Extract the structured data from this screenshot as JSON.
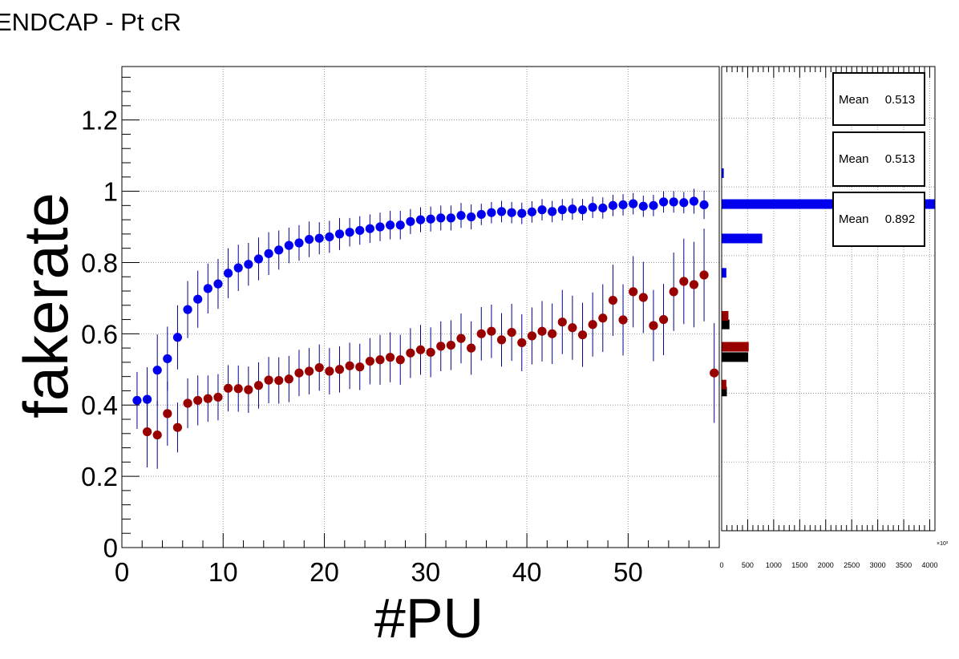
{
  "title": "ENDCAP - Pt cR",
  "colors": {
    "blue": "#0000ee",
    "red": "#990000",
    "black": "#000000",
    "errbar": "#00008b",
    "grid": "#9a9a9a"
  },
  "chart_data": [
    {
      "type": "scatter",
      "title": "ENDCAP - Pt cR",
      "xlabel": "#PU",
      "ylabel": "fakerate",
      "xlim": [
        0,
        59
      ],
      "ylim": [
        0,
        1.35
      ],
      "grid": true,
      "x_ticks": [
        "0",
        "10",
        "20",
        "30",
        "40",
        "50"
      ],
      "y_ticks": [
        "0",
        "0.2",
        "0.4",
        "0.6",
        "0.8",
        "1",
        "1.2"
      ],
      "series": [
        {
          "color": "blue",
          "points": [
            [
              1.5,
              0.413,
              0.08
            ],
            [
              2.5,
              0.416,
              0.09
            ],
            [
              3.5,
              0.498,
              0.1
            ],
            [
              4.5,
              0.53,
              0.09
            ],
            [
              5.5,
              0.59,
              0.09
            ],
            [
              6.5,
              0.668,
              0.08
            ],
            [
              7.5,
              0.697,
              0.08
            ],
            [
              8.5,
              0.727,
              0.07
            ],
            [
              9.5,
              0.74,
              0.07
            ],
            [
              10.5,
              0.77,
              0.07
            ],
            [
              11.5,
              0.785,
              0.065
            ],
            [
              12.5,
              0.795,
              0.06
            ],
            [
              13.5,
              0.81,
              0.06
            ],
            [
              14.5,
              0.825,
              0.06
            ],
            [
              15.5,
              0.835,
              0.055
            ],
            [
              16.5,
              0.848,
              0.05
            ],
            [
              17.5,
              0.855,
              0.05
            ],
            [
              18.5,
              0.865,
              0.05
            ],
            [
              19.5,
              0.868,
              0.045
            ],
            [
              20.5,
              0.872,
              0.045
            ],
            [
              21.5,
              0.88,
              0.045
            ],
            [
              22.5,
              0.885,
              0.04
            ],
            [
              23.5,
              0.89,
              0.04
            ],
            [
              24.5,
              0.895,
              0.04
            ],
            [
              25.5,
              0.9,
              0.04
            ],
            [
              26.5,
              0.905,
              0.04
            ],
            [
              27.5,
              0.905,
              0.04
            ],
            [
              28.5,
              0.915,
              0.035
            ],
            [
              29.5,
              0.92,
              0.035
            ],
            [
              30.5,
              0.922,
              0.035
            ],
            [
              31.5,
              0.925,
              0.035
            ],
            [
              32.5,
              0.925,
              0.035
            ],
            [
              33.5,
              0.932,
              0.035
            ],
            [
              34.5,
              0.928,
              0.035
            ],
            [
              35.5,
              0.935,
              0.03
            ],
            [
              36.5,
              0.94,
              0.03
            ],
            [
              37.5,
              0.943,
              0.03
            ],
            [
              38.5,
              0.94,
              0.03
            ],
            [
              39.5,
              0.938,
              0.03
            ],
            [
              40.5,
              0.942,
              0.03
            ],
            [
              41.5,
              0.948,
              0.03
            ],
            [
              42.5,
              0.943,
              0.03
            ],
            [
              43.5,
              0.948,
              0.03
            ],
            [
              44.5,
              0.95,
              0.03
            ],
            [
              45.5,
              0.948,
              0.03
            ],
            [
              46.5,
              0.955,
              0.03
            ],
            [
              47.5,
              0.953,
              0.03
            ],
            [
              48.5,
              0.96,
              0.03
            ],
            [
              49.5,
              0.962,
              0.03
            ],
            [
              50.5,
              0.965,
              0.03
            ],
            [
              51.5,
              0.958,
              0.03
            ],
            [
              52.5,
              0.96,
              0.03
            ],
            [
              53.5,
              0.97,
              0.03
            ],
            [
              54.5,
              0.97,
              0.03
            ],
            [
              55.5,
              0.968,
              0.03
            ],
            [
              56.5,
              0.972,
              0.035
            ],
            [
              57.5,
              0.962,
              0.04
            ]
          ]
        },
        {
          "color": "red",
          "points": [
            [
              2.5,
              0.325,
              0.1
            ],
            [
              3.5,
              0.316,
              0.095
            ],
            [
              4.5,
              0.376,
              0.09
            ],
            [
              5.5,
              0.337,
              0.07
            ],
            [
              6.5,
              0.405,
              0.07
            ],
            [
              7.5,
              0.413,
              0.07
            ],
            [
              8.5,
              0.418,
              0.065
            ],
            [
              9.5,
              0.422,
              0.065
            ],
            [
              10.5,
              0.447,
              0.065
            ],
            [
              11.5,
              0.446,
              0.065
            ],
            [
              12.5,
              0.443,
              0.065
            ],
            [
              13.5,
              0.455,
              0.065
            ],
            [
              14.5,
              0.47,
              0.065
            ],
            [
              15.5,
              0.469,
              0.065
            ],
            [
              16.5,
              0.473,
              0.065
            ],
            [
              17.5,
              0.49,
              0.065
            ],
            [
              18.5,
              0.495,
              0.065
            ],
            [
              19.5,
              0.505,
              0.065
            ],
            [
              20.5,
              0.495,
              0.065
            ],
            [
              21.5,
              0.5,
              0.065
            ],
            [
              22.5,
              0.51,
              0.065
            ],
            [
              23.5,
              0.507,
              0.065
            ],
            [
              24.5,
              0.523,
              0.065
            ],
            [
              25.5,
              0.527,
              0.07
            ],
            [
              26.5,
              0.534,
              0.07
            ],
            [
              27.5,
              0.527,
              0.07
            ],
            [
              28.5,
              0.546,
              0.07
            ],
            [
              29.5,
              0.555,
              0.07
            ],
            [
              30.5,
              0.548,
              0.07
            ],
            [
              31.5,
              0.565,
              0.07
            ],
            [
              32.5,
              0.568,
              0.07
            ],
            [
              33.5,
              0.587,
              0.07
            ],
            [
              34.5,
              0.56,
              0.075
            ],
            [
              35.5,
              0.6,
              0.075
            ],
            [
              36.5,
              0.607,
              0.075
            ],
            [
              37.5,
              0.583,
              0.075
            ],
            [
              38.5,
              0.604,
              0.08
            ],
            [
              39.5,
              0.575,
              0.08
            ],
            [
              40.5,
              0.594,
              0.08
            ],
            [
              41.5,
              0.607,
              0.085
            ],
            [
              42.5,
              0.6,
              0.085
            ],
            [
              43.5,
              0.633,
              0.09
            ],
            [
              44.5,
              0.617,
              0.09
            ],
            [
              45.5,
              0.597,
              0.09
            ],
            [
              46.5,
              0.626,
              0.09
            ],
            [
              47.5,
              0.644,
              0.095
            ],
            [
              48.5,
              0.694,
              0.1
            ],
            [
              49.5,
              0.639,
              0.1
            ],
            [
              50.5,
              0.718,
              0.1
            ],
            [
              51.5,
              0.702,
              0.1
            ],
            [
              52.5,
              0.623,
              0.1
            ],
            [
              53.5,
              0.64,
              0.1
            ],
            [
              54.5,
              0.718,
              0.11
            ],
            [
              55.5,
              0.747,
              0.12
            ],
            [
              56.5,
              0.738,
              0.12
            ],
            [
              57.5,
              0.765,
              0.13
            ],
            [
              58.5,
              0.49,
              0.14
            ]
          ]
        }
      ]
    },
    {
      "type": "bar",
      "orientation": "horizontal",
      "x_ticks": [
        "0",
        "500",
        "1000",
        "1500",
        "2000",
        "2500",
        "3000",
        "3500",
        "4000"
      ],
      "x_exponent": "×10³",
      "xlim": [
        0,
        4100
      ],
      "ylim": [
        0,
        1.35
      ],
      "grid": true,
      "series": [
        {
          "color": "black",
          "bars": [
            [
              0.405,
              100
            ],
            [
              0.505,
              510
            ],
            [
              0.6,
              150
            ]
          ]
        },
        {
          "color": "red",
          "bars": [
            [
              0.425,
              90
            ],
            [
              0.535,
              520
            ],
            [
              0.625,
              130
            ]
          ]
        },
        {
          "color": "blue",
          "bars": [
            [
              0.75,
              90
            ],
            [
              0.85,
              780
            ],
            [
              0.95,
              4100
            ],
            [
              1.04,
              40
            ]
          ]
        }
      ],
      "stat_boxes": [
        {
          "label": "Mean",
          "value": "0.513",
          "color": "black"
        },
        {
          "label": "Mean",
          "value": "0.513",
          "color": "red"
        },
        {
          "label": "Mean",
          "value": "0.892",
          "color": "blue"
        }
      ]
    }
  ]
}
